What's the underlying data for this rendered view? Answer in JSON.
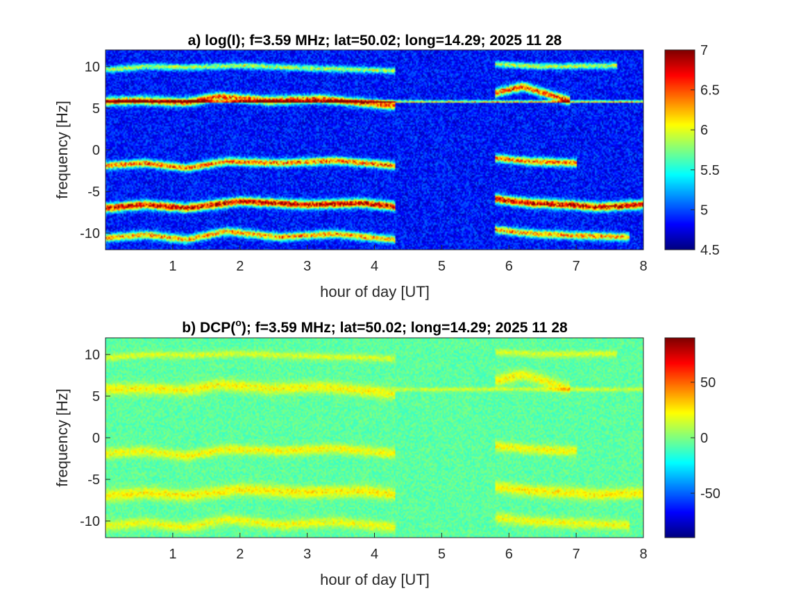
{
  "figure": {
    "background": "#ffffff"
  },
  "chart_data": [
    {
      "type": "heatmap",
      "title": "a) log(I); f=3.59 MHz;  lat=50.02; long=14.29; 2025 11 28",
      "title_parts": {
        "text": "a) log(I); f=3.59 MHz;  lat=50.02; long=14.29; 2025 11 28"
      },
      "xlabel": "hour of day [UT]",
      "ylabel": "frequency [Hz]",
      "xlim": [
        0,
        8
      ],
      "ylim": [
        -12,
        12
      ],
      "xticks": [
        1,
        2,
        3,
        4,
        5,
        6,
        7,
        8
      ],
      "yticks": [
        10,
        5,
        0,
        -5,
        -10
      ],
      "colormap": "jet",
      "clim": [
        4.5,
        7
      ],
      "colorbar_ticks": [
        7,
        6.5,
        6,
        5.5,
        5,
        4.5
      ],
      "background_level": 4.85,
      "colorbar_location": "right",
      "features": [
        {
          "label": "line-10",
          "center": 9.8,
          "width": 0.35,
          "peak": 5.9,
          "segments": [
            [
              0,
              4.3
            ],
            [
              5.8,
              7.6
            ]
          ],
          "track": [
            [
              0,
              9.6
            ],
            [
              0.6,
              10.0
            ],
            [
              1.2,
              9.9
            ],
            [
              2.0,
              10.1
            ],
            [
              3.0,
              9.8
            ],
            [
              4.3,
              9.5
            ],
            [
              5.8,
              10.3
            ],
            [
              6.5,
              10.0
            ],
            [
              7.6,
              10.1
            ]
          ]
        },
        {
          "label": "line-6",
          "center": 5.8,
          "width": 0.5,
          "peak": 6.5,
          "segments": [
            [
              0,
              4.3
            ],
            [
              5.8,
              6.9
            ]
          ],
          "track": [
            [
              0,
              5.8
            ],
            [
              0.5,
              5.9
            ],
            [
              1.2,
              5.7
            ],
            [
              1.7,
              6.4
            ],
            [
              2.4,
              5.9
            ],
            [
              3.2,
              6.1
            ],
            [
              4.3,
              5.3
            ],
            [
              5.8,
              6.8
            ],
            [
              6.2,
              7.6
            ],
            [
              6.9,
              5.9
            ]
          ]
        },
        {
          "label": "carrier",
          "center": 5.8,
          "width": 0.12,
          "peak": 6.3,
          "segments": [
            [
              0,
              8
            ]
          ],
          "track": [
            [
              0,
              5.8
            ],
            [
              8,
              5.8
            ]
          ]
        },
        {
          "label": "line-minus2",
          "center": -1.8,
          "width": 0.45,
          "peak": 6.4,
          "segments": [
            [
              0,
              4.3
            ],
            [
              5.8,
              7.0
            ]
          ],
          "track": [
            [
              0,
              -1.9
            ],
            [
              0.6,
              -1.6
            ],
            [
              1.2,
              -2.2
            ],
            [
              1.8,
              -1.4
            ],
            [
              2.6,
              -1.6
            ],
            [
              3.4,
              -1.3
            ],
            [
              4.3,
              -1.9
            ],
            [
              5.8,
              -1.0
            ],
            [
              6.3,
              -1.4
            ],
            [
              7.0,
              -1.6
            ]
          ]
        },
        {
          "label": "line-minus6",
          "center": -6.6,
          "width": 0.5,
          "peak": 6.8,
          "segments": [
            [
              0,
              4.3
            ],
            [
              5.8,
              8.0
            ]
          ],
          "track": [
            [
              0,
              -7.0
            ],
            [
              0.6,
              -6.6
            ],
            [
              1.2,
              -7.0
            ],
            [
              2.0,
              -6.2
            ],
            [
              3.0,
              -6.6
            ],
            [
              3.8,
              -6.4
            ],
            [
              4.3,
              -6.8
            ],
            [
              5.8,
              -5.9
            ],
            [
              6.3,
              -6.4
            ],
            [
              6.9,
              -6.6
            ],
            [
              7.3,
              -6.9
            ],
            [
              8.0,
              -6.6
            ]
          ]
        },
        {
          "label": "line-minus10",
          "center": -10.5,
          "width": 0.45,
          "peak": 6.3,
          "segments": [
            [
              0,
              4.3
            ],
            [
              5.8,
              7.8
            ]
          ],
          "track": [
            [
              0,
              -10.6
            ],
            [
              0.6,
              -10.2
            ],
            [
              1.2,
              -10.8
            ],
            [
              1.8,
              -9.8
            ],
            [
              2.6,
              -10.5
            ],
            [
              3.4,
              -10.1
            ],
            [
              4.3,
              -10.8
            ],
            [
              5.8,
              -9.6
            ],
            [
              6.4,
              -10.1
            ],
            [
              7.0,
              -10.3
            ],
            [
              7.8,
              -10.5
            ]
          ]
        }
      ]
    },
    {
      "type": "heatmap",
      "title": "b) DCP(°); f=3.59 MHz;  lat=50.02; long=14.29; 2025 11 28",
      "title_parts": {
        "prefix": "b) DCP(",
        "superscript": "o",
        "suffix": "); f=3.59 MHz;  lat=50.02; long=14.29; 2025 11 28"
      },
      "xlabel": "hour of day [UT]",
      "ylabel": "frequency [Hz]",
      "xlim": [
        0,
        8
      ],
      "ylim": [
        -12,
        12
      ],
      "xticks": [
        1,
        2,
        3,
        4,
        5,
        6,
        7,
        8
      ],
      "yticks": [
        10,
        5,
        0,
        -5,
        -10
      ],
      "colormap": "jet",
      "clim": [
        -90,
        90
      ],
      "colorbar_ticks": [
        50,
        0,
        -50
      ],
      "background_level": -6,
      "colorbar_location": "right",
      "features": [
        {
          "label": "line-10",
          "center": 9.8,
          "width": 0.4,
          "peak": 16,
          "segments": [
            [
              0,
              4.3
            ],
            [
              5.8,
              7.6
            ]
          ],
          "track": [
            [
              0,
              9.6
            ],
            [
              0.6,
              10.0
            ],
            [
              1.2,
              9.9
            ],
            [
              2.0,
              10.1
            ],
            [
              3.0,
              9.8
            ],
            [
              4.3,
              9.5
            ],
            [
              5.8,
              10.3
            ],
            [
              6.5,
              10.0
            ],
            [
              7.6,
              10.1
            ]
          ]
        },
        {
          "label": "line-6",
          "center": 5.8,
          "width": 0.7,
          "peak": 22,
          "segments": [
            [
              0,
              4.3
            ],
            [
              5.8,
              6.9
            ]
          ],
          "track": [
            [
              0,
              5.8
            ],
            [
              0.5,
              5.9
            ],
            [
              1.2,
              5.7
            ],
            [
              1.7,
              6.4
            ],
            [
              2.4,
              5.9
            ],
            [
              3.2,
              6.1
            ],
            [
              4.3,
              5.3
            ],
            [
              5.8,
              6.8
            ],
            [
              6.2,
              7.6
            ],
            [
              6.9,
              5.9
            ]
          ]
        },
        {
          "label": "carrier",
          "center": 5.8,
          "width": 0.25,
          "peak": 14,
          "segments": [
            [
              4.3,
              8
            ]
          ],
          "track": [
            [
              4.3,
              5.8
            ],
            [
              8,
              5.8
            ]
          ]
        },
        {
          "label": "line-minus2",
          "center": -1.8,
          "width": 0.6,
          "peak": 22,
          "segments": [
            [
              0,
              4.3
            ],
            [
              5.8,
              7.0
            ]
          ],
          "track": [
            [
              0,
              -1.9
            ],
            [
              0.6,
              -1.6
            ],
            [
              1.2,
              -2.2
            ],
            [
              1.8,
              -1.4
            ],
            [
              2.6,
              -1.6
            ],
            [
              3.4,
              -1.3
            ],
            [
              4.3,
              -1.9
            ],
            [
              5.8,
              -1.0
            ],
            [
              6.3,
              -1.4
            ],
            [
              7.0,
              -1.6
            ]
          ]
        },
        {
          "label": "line-minus6",
          "center": -6.6,
          "width": 0.7,
          "peak": 24,
          "segments": [
            [
              0,
              4.3
            ],
            [
              5.8,
              8.0
            ]
          ],
          "track": [
            [
              0,
              -7.0
            ],
            [
              0.6,
              -6.6
            ],
            [
              1.2,
              -7.0
            ],
            [
              2.0,
              -6.2
            ],
            [
              3.0,
              -6.6
            ],
            [
              3.8,
              -6.4
            ],
            [
              4.3,
              -6.8
            ],
            [
              5.8,
              -5.9
            ],
            [
              6.3,
              -6.4
            ],
            [
              6.9,
              -6.6
            ],
            [
              7.3,
              -6.9
            ],
            [
              8.0,
              -6.6
            ]
          ]
        },
        {
          "label": "line-minus10",
          "center": -10.5,
          "width": 0.6,
          "peak": 20,
          "segments": [
            [
              0,
              4.3
            ],
            [
              5.8,
              7.8
            ]
          ],
          "track": [
            [
              0,
              -10.6
            ],
            [
              0.6,
              -10.2
            ],
            [
              1.2,
              -10.8
            ],
            [
              1.8,
              -9.8
            ],
            [
              2.6,
              -10.5
            ],
            [
              3.4,
              -10.1
            ],
            [
              4.3,
              -10.8
            ],
            [
              5.8,
              -9.6
            ],
            [
              6.4,
              -10.1
            ],
            [
              7.0,
              -10.3
            ],
            [
              7.8,
              -10.5
            ]
          ]
        }
      ]
    }
  ]
}
